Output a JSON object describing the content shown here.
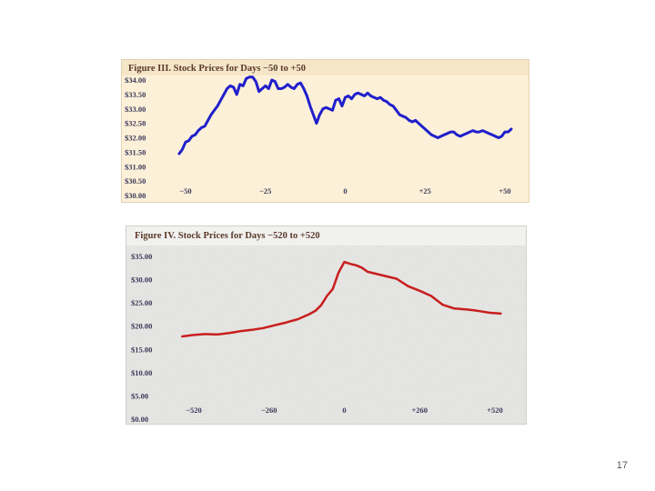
{
  "chart_data": [
    {
      "type": "line",
      "title": "Figure III. Stock Prices for Days −50 to +50",
      "xlabel": "",
      "ylabel": "",
      "xlim": [
        -50,
        50
      ],
      "ylim": [
        30.0,
        34.0
      ],
      "x_ticks": [
        -50,
        -25,
        0,
        25,
        50
      ],
      "x_tick_labels": [
        "−50",
        "−25",
        "0",
        "+25",
        "+50"
      ],
      "y_ticks": [
        30.0,
        30.5,
        31.0,
        31.5,
        32.0,
        32.5,
        33.0,
        33.5,
        34.0
      ],
      "y_tick_labels": [
        "$30.00",
        "$30.50",
        "$31.00",
        "$31.50",
        "$32.00",
        "$32.50",
        "$33.00",
        "$33.50",
        "$34.00"
      ],
      "grid": false,
      "colors": {
        "background": "#fdf0d8",
        "title_band": "#f6e6c8",
        "line": "#1f1fcc"
      },
      "series": [
        {
          "x": [
            -52,
            -51,
            -50,
            -49,
            -48,
            -47,
            -46,
            -45,
            -44,
            -43,
            -42,
            -41,
            -40,
            -39,
            -38,
            -37,
            -36,
            -35,
            -34,
            -33,
            -32,
            -31,
            -30,
            -29,
            -28,
            -27,
            -26,
            -25,
            -24,
            -23,
            -22,
            -21,
            -20,
            -19,
            -18,
            -17,
            -16,
            -15,
            -14,
            -13,
            -12,
            -11,
            -10,
            -9,
            -8,
            -7,
            -6,
            -5,
            -4,
            -3,
            -2,
            -1,
            0,
            1,
            2,
            3,
            4,
            5,
            6,
            7,
            8,
            9,
            10,
            11,
            12,
            13,
            14,
            15,
            16,
            17,
            18,
            19,
            20,
            21,
            22,
            23,
            24,
            25,
            26,
            27,
            28,
            29,
            30,
            31,
            32,
            33,
            34,
            35,
            36,
            37,
            38,
            39,
            40,
            41,
            42,
            43,
            44,
            45,
            46,
            47,
            48,
            49,
            50,
            51,
            52
          ],
          "values": [
            31.45,
            31.6,
            31.85,
            31.9,
            32.05,
            32.1,
            32.25,
            32.35,
            32.4,
            32.6,
            32.8,
            32.95,
            33.1,
            33.3,
            33.5,
            33.7,
            33.8,
            33.75,
            33.5,
            33.85,
            33.8,
            34.05,
            34.1,
            34.1,
            33.95,
            33.6,
            33.7,
            33.8,
            33.7,
            34.0,
            33.95,
            33.7,
            33.7,
            33.75,
            33.85,
            33.75,
            33.7,
            33.85,
            33.9,
            33.7,
            33.45,
            33.1,
            32.8,
            32.5,
            32.8,
            33.0,
            33.05,
            33.0,
            32.95,
            33.3,
            33.35,
            33.1,
            33.4,
            33.45,
            33.35,
            33.5,
            33.55,
            33.5,
            33.45,
            33.55,
            33.45,
            33.4,
            33.35,
            33.4,
            33.3,
            33.25,
            33.15,
            33.1,
            32.95,
            32.8,
            32.75,
            32.7,
            32.6,
            32.55,
            32.6,
            32.5,
            32.4,
            32.3,
            32.2,
            32.1,
            32.05,
            32.0,
            32.05,
            32.1,
            32.15,
            32.2,
            32.2,
            32.1,
            32.05,
            32.1,
            32.15,
            32.2,
            32.25,
            32.2,
            32.2,
            32.25,
            32.2,
            32.15,
            32.1,
            32.05,
            32.0,
            32.05,
            32.2,
            32.2,
            32.3
          ]
        }
      ]
    },
    {
      "type": "line",
      "title": "Figure IV. Stock Prices for Days −520 to +520",
      "xlabel": "",
      "ylabel": "",
      "xlim": [
        -520,
        520
      ],
      "ylim": [
        0,
        35
      ],
      "x_ticks": [
        -520,
        -260,
        0,
        260,
        520
      ],
      "x_tick_labels": [
        "−520",
        "−260",
        "0",
        "+260",
        "+520"
      ],
      "y_ticks": [
        0,
        5,
        10,
        15,
        20,
        25,
        30,
        35
      ],
      "y_tick_labels": [
        "$0.00",
        "$5.00",
        "$10.00",
        "$15.00",
        "$20.00",
        "$25.00",
        "$30.00",
        "$35.00"
      ],
      "grid": false,
      "colors": {
        "background": "#ececea",
        "title_band": "#f1f1ef",
        "line": "#c81e1e"
      },
      "series": [
        {
          "x": [
            -560,
            -520,
            -480,
            -440,
            -400,
            -360,
            -320,
            -280,
            -240,
            -200,
            -160,
            -120,
            -100,
            -80,
            -60,
            -40,
            -20,
            0,
            20,
            40,
            60,
            80,
            100,
            140,
            180,
            220,
            260,
            300,
            340,
            380,
            420,
            460,
            500,
            540
          ],
          "values": [
            17.8,
            18.1,
            18.3,
            18.2,
            18.5,
            18.9,
            19.2,
            19.6,
            20.2,
            20.8,
            21.5,
            22.6,
            23.3,
            24.5,
            26.5,
            28.0,
            31.5,
            33.8,
            33.4,
            33.1,
            32.6,
            31.7,
            31.4,
            30.8,
            30.2,
            28.6,
            27.6,
            26.5,
            24.6,
            23.8,
            23.6,
            23.3,
            22.9,
            22.7
          ]
        }
      ]
    }
  ],
  "page": {
    "number": "17"
  }
}
